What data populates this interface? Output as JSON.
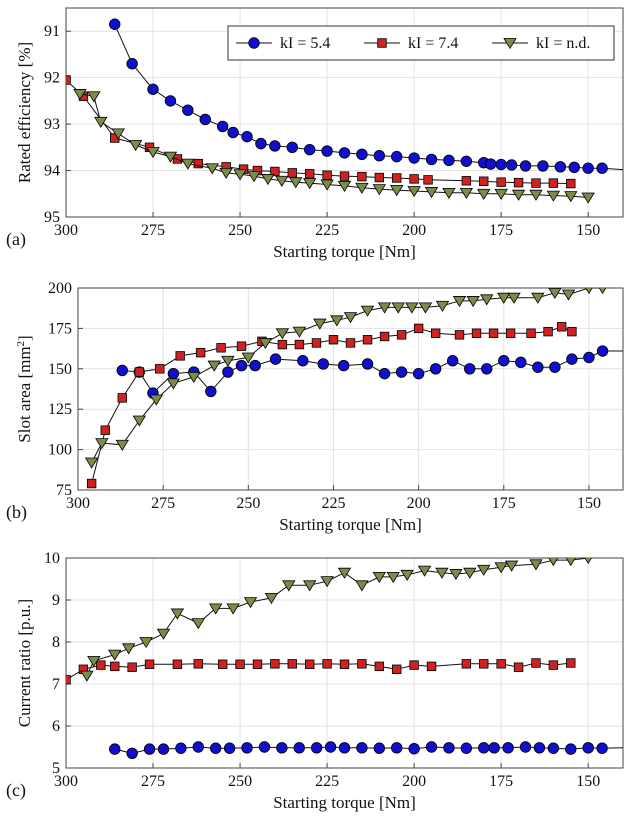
{
  "chart_data": [
    {
      "type": "line",
      "panel_label": "(a)",
      "xlabel": "Starting torque [Nm]",
      "ylabel": "Rated efficiency [%]",
      "xlim": [
        300,
        140
      ],
      "ylim": [
        95,
        90.5
      ],
      "y_reversed": true,
      "grid": true,
      "xticks": [
        300,
        275,
        250,
        225,
        200,
        175,
        150
      ],
      "yticks": [
        91,
        92,
        93,
        94,
        95
      ],
      "legend": {
        "position": "top-right",
        "entries": [
          "kI = 5.4",
          "kI = 7.4",
          "kI = n.d."
        ]
      },
      "series": [
        {
          "name": "kI = 5.4",
          "marker": "circle",
          "color": "#1010cc",
          "x": [
            286,
            281,
            275,
            270,
            265,
            260,
            255,
            252,
            248,
            244,
            240,
            235,
            230,
            225,
            220,
            215,
            210,
            205,
            200,
            195,
            190,
            185,
            180,
            178,
            175,
            172,
            168,
            163,
            158,
            154,
            150,
            146,
            140
          ],
          "y": [
            90.85,
            91.7,
            92.25,
            92.5,
            92.7,
            92.9,
            93.05,
            93.18,
            93.27,
            93.42,
            93.47,
            93.5,
            93.55,
            93.58,
            93.62,
            93.65,
            93.68,
            93.7,
            93.73,
            93.76,
            93.78,
            93.8,
            93.83,
            93.86,
            93.87,
            93.88,
            93.9,
            93.9,
            93.92,
            93.93,
            93.95,
            93.95,
            93.98
          ]
        },
        {
          "name": "kI = 7.4",
          "marker": "square",
          "color": "#cc2222",
          "x": [
            300,
            295,
            286,
            276,
            268,
            262,
            254,
            249,
            245,
            240,
            235,
            230,
            225,
            220,
            215,
            210,
            205,
            200,
            196,
            185,
            180,
            175,
            170,
            165,
            160,
            155
          ],
          "y": [
            92.05,
            92.4,
            93.3,
            93.5,
            93.75,
            93.85,
            93.92,
            93.97,
            94.0,
            94.02,
            94.05,
            94.07,
            94.1,
            94.12,
            94.13,
            94.15,
            94.16,
            94.18,
            94.2,
            94.22,
            94.23,
            94.25,
            94.26,
            94.27,
            94.27,
            94.28
          ]
        },
        {
          "name": "kI = n.d.",
          "marker": "triangle-down",
          "color": "#7a8c4a",
          "x": [
            296,
            292,
            290,
            285,
            280,
            275,
            270,
            265,
            258,
            254,
            250,
            246,
            242,
            238,
            234,
            230,
            225,
            220,
            215,
            210,
            205,
            200,
            195,
            190,
            185,
            180,
            175,
            170,
            165,
            160,
            155,
            150
          ],
          "y": [
            92.35,
            92.4,
            92.95,
            93.2,
            93.45,
            93.6,
            93.7,
            93.85,
            93.95,
            94.05,
            94.08,
            94.12,
            94.18,
            94.22,
            94.25,
            94.27,
            94.3,
            94.33,
            94.37,
            94.4,
            94.42,
            94.44,
            94.46,
            94.48,
            94.48,
            94.5,
            94.5,
            94.52,
            94.52,
            94.54,
            94.55,
            94.58
          ]
        }
      ]
    },
    {
      "type": "line",
      "panel_label": "(b)",
      "xlabel": "Starting torque [Nm]",
      "ylabel": "Slot area [mm",
      "ylabel_sup": "2",
      "ylabel_end": "]",
      "xlim": [
        300,
        140
      ],
      "ylim": [
        75,
        200
      ],
      "grid": true,
      "xticks": [
        300,
        275,
        250,
        225,
        200,
        175,
        150
      ],
      "yticks": [
        75,
        100,
        125,
        150,
        175,
        200
      ],
      "series": [
        {
          "name": "kI = 5.4",
          "marker": "circle",
          "color": "#1010cc",
          "x": [
            287,
            282,
            278,
            272,
            266,
            261,
            256,
            252,
            248,
            242,
            234,
            228,
            222,
            215,
            210,
            205,
            200,
            195,
            190,
            185,
            180,
            175,
            170,
            165,
            160,
            155,
            150,
            146,
            140
          ],
          "y": [
            149,
            148,
            135,
            147,
            148,
            136,
            148,
            152,
            152,
            156,
            155,
            153,
            152,
            153,
            147,
            148,
            147,
            150,
            155,
            150,
            150,
            155,
            154,
            151,
            151,
            156,
            157,
            161,
            161
          ]
        },
        {
          "name": "kI = 7.4",
          "marker": "square",
          "color": "#cc2222",
          "x": [
            296,
            292,
            287,
            282,
            276,
            270,
            264,
            258,
            252,
            246,
            240,
            235,
            230,
            225,
            220,
            215,
            210,
            205,
            200,
            195,
            188,
            183,
            178,
            173,
            167,
            162,
            158,
            155
          ],
          "y": [
            79,
            112,
            132,
            148,
            150,
            158,
            160,
            163,
            164,
            167,
            165,
            165,
            166,
            168,
            166,
            168,
            170,
            171,
            175,
            172,
            171,
            172,
            172,
            172,
            172,
            173,
            176,
            173
          ]
        },
        {
          "name": "kI = n.d.",
          "marker": "triangle-down",
          "color": "#7a8c4a",
          "x": [
            296,
            293,
            287,
            282,
            277,
            272,
            266,
            260,
            256,
            250,
            245,
            240,
            235,
            229,
            224,
            220,
            215,
            210,
            206,
            202,
            198,
            193,
            188,
            184,
            180,
            175,
            172,
            165,
            160,
            156,
            150,
            146
          ],
          "y": [
            92,
            104,
            103,
            118,
            131,
            141,
            145,
            152,
            155,
            157,
            166,
            172,
            173,
            178,
            180,
            182,
            186,
            188,
            188,
            188,
            188,
            189,
            192,
            192,
            193,
            194,
            194,
            194,
            197,
            196,
            200,
            200
          ]
        }
      ]
    },
    {
      "type": "line",
      "panel_label": "(c)",
      "xlabel": "Starting torque [Nm]",
      "ylabel": "Current ratio [p.u.]",
      "xlim": [
        300,
        140
      ],
      "ylim": [
        5,
        10
      ],
      "grid": true,
      "xticks": [
        300,
        275,
        250,
        225,
        200,
        175,
        150
      ],
      "yticks": [
        5,
        6,
        7,
        8,
        9,
        10
      ],
      "series": [
        {
          "name": "kI = 5.4",
          "marker": "circle",
          "color": "#1010cc",
          "x": [
            286,
            281,
            276,
            272,
            267,
            262,
            257,
            253,
            248,
            243,
            238,
            233,
            228,
            224,
            220,
            215,
            210,
            205,
            200,
            195,
            190,
            185,
            180,
            177,
            173,
            168,
            164,
            160,
            155,
            150,
            146,
            140
          ],
          "y": [
            5.45,
            5.35,
            5.45,
            5.45,
            5.47,
            5.5,
            5.47,
            5.47,
            5.48,
            5.5,
            5.48,
            5.48,
            5.48,
            5.5,
            5.48,
            5.48,
            5.47,
            5.48,
            5.46,
            5.5,
            5.48,
            5.47,
            5.48,
            5.48,
            5.48,
            5.5,
            5.48,
            5.47,
            5.45,
            5.48,
            5.47,
            5.48
          ]
        },
        {
          "name": "kI = 7.4",
          "marker": "square",
          "color": "#cc2222",
          "x": [
            300,
            295,
            290,
            286,
            281,
            276,
            268,
            262,
            255,
            250,
            245,
            240,
            235,
            230,
            225,
            220,
            215,
            210,
            205,
            200,
            195,
            185,
            180,
            175,
            170,
            165,
            160,
            155
          ],
          "y": [
            7.1,
            7.35,
            7.45,
            7.42,
            7.4,
            7.47,
            7.47,
            7.48,
            7.47,
            7.47,
            7.47,
            7.48,
            7.48,
            7.47,
            7.48,
            7.47,
            7.48,
            7.42,
            7.35,
            7.45,
            7.42,
            7.48,
            7.48,
            7.48,
            7.4,
            7.5,
            7.45,
            7.5
          ]
        },
        {
          "name": "kI = n.d.",
          "marker": "triangle-down",
          "color": "#7a8c4a",
          "x": [
            294,
            292,
            286,
            282,
            277,
            272,
            268,
            262,
            257,
            252,
            247,
            241,
            236,
            230,
            225,
            220,
            215,
            210,
            206,
            202,
            197,
            192,
            188,
            184,
            180,
            175,
            172,
            165,
            160,
            155,
            150
          ],
          "y": [
            7.2,
            7.55,
            7.7,
            7.85,
            8.0,
            8.2,
            8.68,
            8.45,
            8.8,
            8.8,
            8.95,
            9.05,
            9.35,
            9.35,
            9.45,
            9.65,
            9.35,
            9.55,
            9.55,
            9.6,
            9.7,
            9.65,
            9.62,
            9.65,
            9.72,
            9.78,
            9.82,
            9.85,
            9.95,
            9.95,
            10.0
          ]
        }
      ]
    }
  ]
}
